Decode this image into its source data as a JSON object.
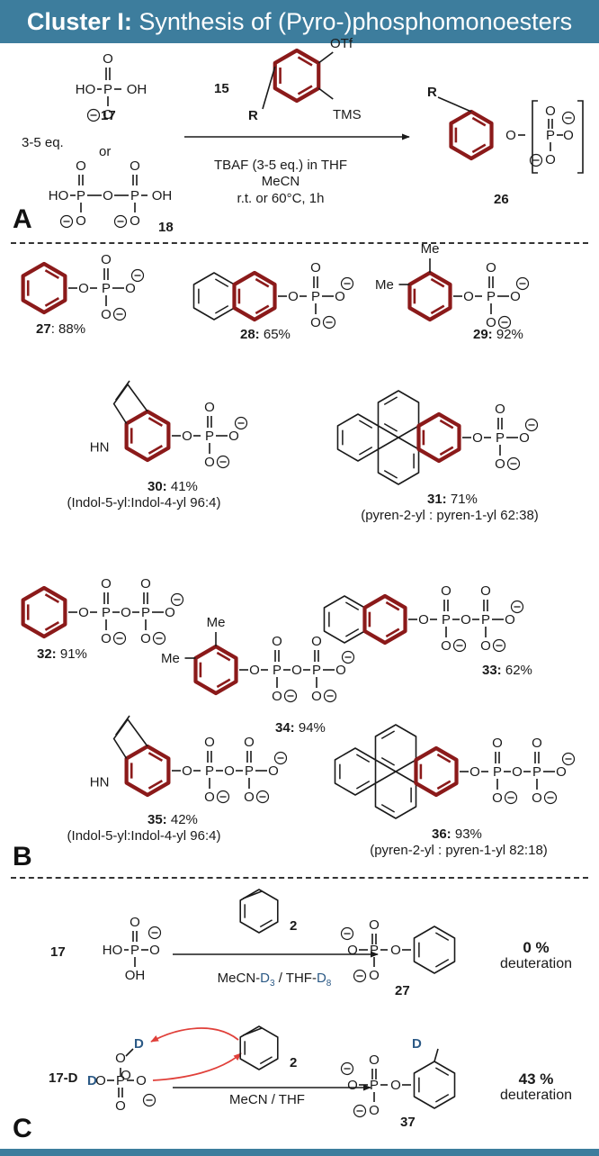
{
  "header": {
    "bold": "Cluster I:",
    "rest": " Synthesis of (Pyro-)phosphomonoesters"
  },
  "colors": {
    "header": "#3d7d9d",
    "ring": "#8b1a1a",
    "arrow": "#e0403a",
    "deuterium": "#2c5a86"
  },
  "panelA": {
    "label": "A",
    "eq": "3-5 eq.",
    "or": "or",
    "reagent17": "17",
    "reagent18": "18",
    "aryne": "15",
    "R": "R",
    "OTf": "OTf",
    "TMS": "TMS",
    "cond1": "TBAF (3-5 eq.) in THF",
    "cond2": "MeCN",
    "cond3": "r.t. or 60°C, 1h",
    "product": "26"
  },
  "panelB": {
    "label": "B",
    "products": [
      {
        "num": "27",
        "sep": ":",
        "yield": " 88%"
      },
      {
        "num": "28:",
        "sep": "",
        "yield": " 65%"
      },
      {
        "num": "29:",
        "sep": "",
        "yield": " 92%"
      },
      {
        "num": "30:",
        "sep": "",
        "yield": " 41%",
        "note": "(Indol-5-yl:Indol-4-yl 96:4)"
      },
      {
        "num": "31:",
        "sep": "",
        "yield": " 71%",
        "note": "(pyren-2-yl : pyren-1-yl  62:38)"
      },
      {
        "num": "32:",
        "sep": "",
        "yield": " 91%"
      },
      {
        "num": "33:",
        "sep": "",
        "yield": " 62%"
      },
      {
        "num": "34:",
        "sep": "",
        "yield": " 94%"
      },
      {
        "num": "35:",
        "sep": "",
        "yield": " 42%",
        "note": "(Indol-5-yl:Indol-4-yl 96:4)"
      },
      {
        "num": "36:",
        "sep": "",
        "yield": " 93%",
        "note": "(pyren-2-yl : pyren-1-yl 82:18)"
      }
    ]
  },
  "panelC": {
    "label": "C",
    "r1": {
      "start": "17",
      "aryne": "2",
      "solvent_a": "MeCN-",
      "d3": "D",
      "d3_sub": "3",
      "solvent_b": " / THF-",
      "d8": "D",
      "d8_sub": "8",
      "product": "27",
      "result": "0 %",
      "result_label": "deuteration"
    },
    "r2": {
      "start": "17-D",
      "aryne": "2",
      "solvent": "MeCN / THF",
      "product": "37",
      "result": "43 %",
      "result_label": "deuteration",
      "D": "D"
    }
  }
}
